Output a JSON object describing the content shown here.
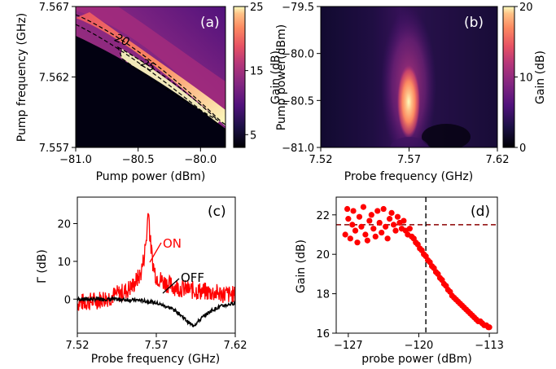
{
  "figure": {
    "panels": [
      {
        "label": "(a)"
      },
      {
        "label": "(b)"
      },
      {
        "label": "(c)"
      },
      {
        "label": "(d)"
      }
    ]
  },
  "chart_data": [
    {
      "panel": "a",
      "type": "heatmap",
      "label": "(a)",
      "xlabel": "Pump power (dBm)",
      "ylabel": "Pump frequency (GHz)",
      "xlim": [
        -81.0,
        -79.8
      ],
      "ylim": [
        7.557,
        7.567
      ],
      "xticks": [
        -81.0,
        -80.5,
        -80.0
      ],
      "xtick_labels": [
        "−81.0",
        "−80.5",
        "−80.0"
      ],
      "yticks": [
        7.557,
        7.562,
        7.567
      ],
      "ytick_labels": [
        "7.557",
        "7.562",
        "7.567"
      ],
      "colorbar": {
        "label": "Gain (dB)",
        "min": 3,
        "max": 25,
        "ticks": [
          5,
          15,
          25
        ],
        "tick_labels": [
          "5",
          "15",
          "25"
        ]
      },
      "contours": [
        {
          "level": 20,
          "label": "20"
        },
        {
          "level": 25,
          "label": "25"
        }
      ]
    },
    {
      "panel": "b",
      "type": "heatmap",
      "label": "(b)",
      "xlabel": "Probe frequency (GHz)",
      "ylabel": "Pump power(dBm)",
      "xlim": [
        7.52,
        7.62
      ],
      "ylim": [
        -81.0,
        -79.5
      ],
      "xticks": [
        7.52,
        7.57,
        7.62
      ],
      "xtick_labels": [
        "7.52",
        "7.57",
        "7.62"
      ],
      "yticks": [
        -81.0,
        -80.5,
        -80.0,
        -79.5
      ],
      "ytick_labels": [
        "−81.0",
        "−80.5",
        "−80.0",
        "−79.5"
      ],
      "colorbar": {
        "label": "Gain (dB)",
        "min": 0,
        "max": 20,
        "ticks": [
          0,
          10,
          20
        ],
        "tick_labels": [
          "0",
          "10",
          "20"
        ]
      }
    },
    {
      "panel": "c",
      "type": "line",
      "label": "(c)",
      "xlabel": "Probe frequency (GHz)",
      "ylabel": "Γ (dB)",
      "xlim": [
        7.52,
        7.62
      ],
      "ylim": [
        -9,
        27
      ],
      "xticks": [
        7.52,
        7.57,
        7.62
      ],
      "xtick_labels": [
        "7.52",
        "7.57",
        "7.62"
      ],
      "yticks": [
        0,
        10,
        20
      ],
      "ytick_labels": [
        "0",
        "10",
        "20"
      ],
      "series": [
        {
          "name": "ON",
          "color": "#ff0000",
          "x": [
            7.52,
            7.53,
            7.54,
            7.55,
            7.555,
            7.56,
            7.562,
            7.564,
            7.565,
            7.566,
            7.568,
            7.57,
            7.575,
            7.58,
            7.59,
            7.6,
            7.61,
            7.62
          ],
          "y": [
            -1.0,
            -0.5,
            0.5,
            2.0,
            3.5,
            6.5,
            10.5,
            17.0,
            25.0,
            16.0,
            9.0,
            6.0,
            4.5,
            3.5,
            2.5,
            2.0,
            1.5,
            1.0
          ]
        },
        {
          "name": "OFF",
          "color": "#000000",
          "x": [
            7.52,
            7.54,
            7.56,
            7.57,
            7.58,
            7.585,
            7.59,
            7.593,
            7.595,
            7.6,
            7.605,
            7.61,
            7.62
          ],
          "y": [
            0.0,
            0.0,
            -0.3,
            -1.0,
            -2.5,
            -4.0,
            -6.0,
            -7.0,
            -6.5,
            -4.5,
            -3.0,
            -2.0,
            -1.0
          ]
        }
      ]
    },
    {
      "panel": "d",
      "type": "scatter",
      "label": "(d)",
      "xlabel": "probe power (dBm)",
      "ylabel": "Gain (dB)",
      "xlim": [
        -128.2,
        -112.2
      ],
      "ylim": [
        16,
        22.9
      ],
      "xticks": [
        -127,
        -120,
        -113
      ],
      "xtick_labels": [
        "−127",
        "−120",
        "−113"
      ],
      "yticks": [
        16,
        18,
        20,
        22
      ],
      "ytick_labels": [
        "16",
        "18",
        "20",
        "22"
      ],
      "hline": 21.5,
      "vline": -119.3,
      "series": [
        {
          "color": "#ff0000",
          "x": [
            -127.3,
            -127.1,
            -127.0,
            -126.8,
            -126.6,
            -126.5,
            -126.3,
            -126.1,
            -125.9,
            -125.7,
            -125.5,
            -125.3,
            -125.1,
            -124.9,
            -124.7,
            -124.5,
            -124.3,
            -124.1,
            -123.9,
            -123.7,
            -123.5,
            -123.3,
            -123.1,
            -122.9,
            -122.7,
            -122.5,
            -122.3,
            -122.1,
            -121.9,
            -121.7,
            -121.5,
            -121.3,
            -121.1,
            -120.9,
            -120.7,
            -120.5,
            -120.3,
            -120.1,
            -119.9,
            -119.7,
            -119.5,
            -119.3,
            -119.1,
            -118.9,
            -118.7,
            -118.5,
            -118.3,
            -118.1,
            -117.9,
            -117.7,
            -117.5,
            -117.3,
            -117.1,
            -116.9,
            -116.7,
            -116.5,
            -116.3,
            -116.1,
            -115.9,
            -115.7,
            -115.5,
            -115.3,
            -115.1,
            -114.9,
            -114.7,
            -114.5,
            -114.3,
            -114.1,
            -113.9,
            -113.7,
            -113.5,
            -113.3,
            -113.1,
            -113.0
          ],
          "y": [
            21.0,
            22.3,
            21.8,
            20.8,
            21.5,
            22.2,
            21.2,
            20.6,
            21.9,
            21.4,
            22.4,
            21.0,
            20.7,
            21.7,
            22.0,
            21.3,
            20.9,
            22.2,
            21.6,
            21.1,
            22.3,
            21.4,
            20.8,
            21.8,
            22.1,
            21.5,
            21.2,
            21.9,
            21.6,
            21.3,
            21.7,
            21.2,
            21.0,
            21.3,
            20.9,
            20.8,
            20.6,
            20.5,
            20.3,
            20.2,
            20.0,
            19.9,
            19.7,
            19.6,
            19.4,
            19.3,
            19.1,
            19.0,
            18.8,
            18.7,
            18.5,
            18.4,
            18.2,
            18.1,
            17.9,
            17.8,
            17.7,
            17.6,
            17.5,
            17.4,
            17.3,
            17.2,
            17.1,
            17.0,
            16.9,
            16.8,
            16.7,
            16.6,
            16.6,
            16.5,
            16.4,
            16.4,
            16.3,
            16.3
          ]
        }
      ]
    }
  ]
}
